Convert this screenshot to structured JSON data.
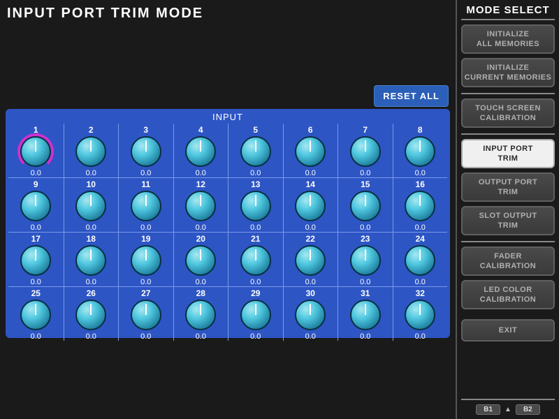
{
  "title": "INPUT PORT TRIM MODE",
  "reset_all_label": "RESET ALL",
  "input_header": "INPUT",
  "knob_count": 32,
  "selected_knob": 1,
  "knobs": [
    {
      "n": "1",
      "v": "0.0"
    },
    {
      "n": "2",
      "v": "0.0"
    },
    {
      "n": "3",
      "v": "0.0"
    },
    {
      "n": "4",
      "v": "0.0"
    },
    {
      "n": "5",
      "v": "0.0"
    },
    {
      "n": "6",
      "v": "0.0"
    },
    {
      "n": "7",
      "v": "0.0"
    },
    {
      "n": "8",
      "v": "0.0"
    },
    {
      "n": "9",
      "v": "0.0"
    },
    {
      "n": "10",
      "v": "0.0"
    },
    {
      "n": "11",
      "v": "0.0"
    },
    {
      "n": "12",
      "v": "0.0"
    },
    {
      "n": "13",
      "v": "0.0"
    },
    {
      "n": "14",
      "v": "0.0"
    },
    {
      "n": "15",
      "v": "0.0"
    },
    {
      "n": "16",
      "v": "0.0"
    },
    {
      "n": "17",
      "v": "0.0"
    },
    {
      "n": "18",
      "v": "0.0"
    },
    {
      "n": "19",
      "v": "0.0"
    },
    {
      "n": "20",
      "v": "0.0"
    },
    {
      "n": "21",
      "v": "0.0"
    },
    {
      "n": "22",
      "v": "0.0"
    },
    {
      "n": "23",
      "v": "0.0"
    },
    {
      "n": "24",
      "v": "0.0"
    },
    {
      "n": "25",
      "v": "0.0"
    },
    {
      "n": "26",
      "v": "0.0"
    },
    {
      "n": "27",
      "v": "0.0"
    },
    {
      "n": "28",
      "v": "0.0"
    },
    {
      "n": "29",
      "v": "0.0"
    },
    {
      "n": "30",
      "v": "0.0"
    },
    {
      "n": "31",
      "v": "0.0"
    },
    {
      "n": "32",
      "v": "0.0"
    }
  ],
  "colors": {
    "panel_bg": "#2d55c4",
    "selected_ring": "#d030d0",
    "knob_face": "#50c8e0"
  },
  "sidebar": {
    "title": "MODE SELECT",
    "group1": [
      "INITIALIZE\nALL MEMORIES",
      "INITIALIZE\nCURRENT MEMORIES"
    ],
    "group2": [
      "TOUCH SCREEN\nCALIBRATION"
    ],
    "group3": [
      {
        "label": "INPUT PORT\nTRIM",
        "active": true
      },
      {
        "label": "OUTPUT PORT\nTRIM",
        "active": false
      },
      {
        "label": "SLOT OUTPUT\nTRIM",
        "active": false
      }
    ],
    "group4": [
      "FADER\nCALIBRATION",
      "LED COLOR\nCALIBRATION"
    ],
    "exit": "EXIT",
    "footer": {
      "b1": "B1",
      "b2": "B2"
    }
  }
}
